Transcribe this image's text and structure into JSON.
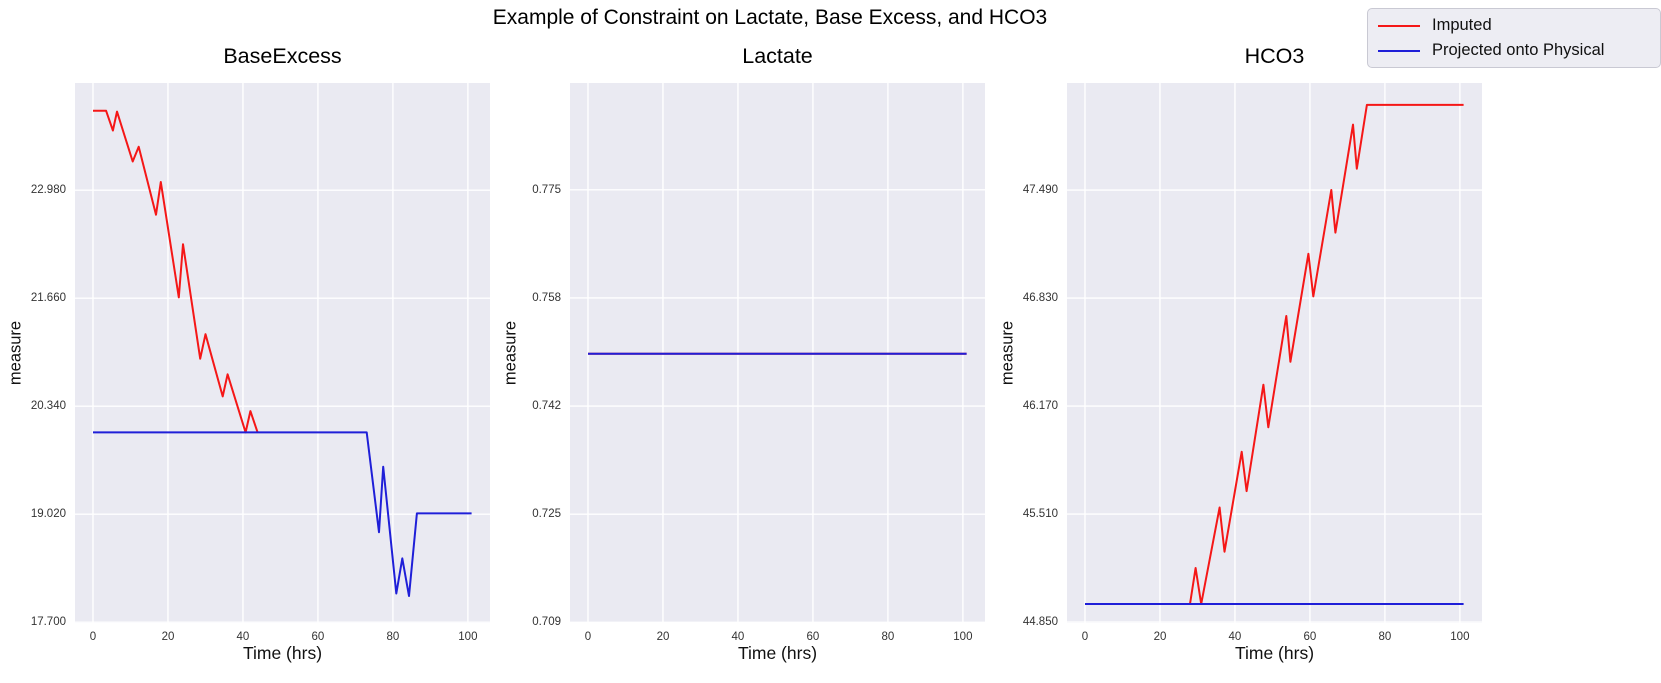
{
  "figure": {
    "title": "Example of Constraint on Lactate, Base Excess, and HCO3"
  },
  "legend": {
    "entries": [
      {
        "label": "Imputed",
        "color": "#f51717"
      },
      {
        "label": "Projected onto Physical",
        "color": "#1f1fd8"
      }
    ]
  },
  "colors": {
    "figure_bg": "#ffffff",
    "plot_bg": "#eaeaf2",
    "grid": "#ffffff",
    "imputed_red": "#f51717",
    "projected_blue": "#1f1fd8"
  },
  "chart_data": [
    {
      "type": "line",
      "title": "BaseExcess",
      "xlabel": "Time (hrs)",
      "ylabel": "measure",
      "grid": true,
      "x_tick_labels": [
        "0",
        "20",
        "40",
        "60",
        "80",
        "100"
      ],
      "x_tick_values": [
        0,
        20,
        40,
        60,
        80,
        100
      ],
      "y_tick_labels": [
        "17.700",
        "19.020",
        "20.340",
        "21.660",
        "22.980"
      ],
      "y_tick_values": [
        17.7,
        19.02,
        20.34,
        21.66,
        22.98
      ],
      "xlim": [
        -4.8,
        105.9
      ],
      "ylim": [
        17.69,
        24.29
      ],
      "series": [
        {
          "name": "Imputed",
          "color": "#f51717",
          "points": [
            [
              0,
              23.95
            ],
            [
              3.5,
              23.95
            ],
            [
              5.3,
              23.71
            ],
            [
              6.4,
              23.94
            ],
            [
              10.6,
              23.33
            ],
            [
              12.2,
              23.51
            ],
            [
              16.8,
              22.68
            ],
            [
              18.1,
              23.08
            ],
            [
              22.9,
              21.67
            ],
            [
              24.0,
              22.32
            ],
            [
              28.6,
              20.92
            ],
            [
              30.0,
              21.22
            ],
            [
              34.6,
              20.46
            ],
            [
              35.9,
              20.73
            ],
            [
              40.7,
              20.02
            ],
            [
              42.0,
              20.28
            ],
            [
              43.9,
              20.02
            ]
          ]
        },
        {
          "name": "Projected onto Physical",
          "color": "#1f1fd8",
          "points": [
            [
              0,
              20.02
            ],
            [
              73,
              20.02
            ],
            [
              76.3,
              18.8
            ],
            [
              77.4,
              19.6
            ],
            [
              80.9,
              18.05
            ],
            [
              82.5,
              18.48
            ],
            [
              84.3,
              18.02
            ],
            [
              86.4,
              19.03
            ],
            [
              101,
              19.03
            ]
          ]
        }
      ]
    },
    {
      "type": "line",
      "title": "Lactate",
      "xlabel": "Time (hrs)",
      "ylabel": "measure",
      "grid": true,
      "x_tick_labels": [
        "0",
        "20",
        "40",
        "60",
        "80",
        "100"
      ],
      "x_tick_values": [
        0,
        20,
        40,
        60,
        80,
        100
      ],
      "y_tick_labels": [
        "0.709",
        "0.725",
        "0.742",
        "0.758",
        "0.775"
      ],
      "y_tick_values": [
        0.709,
        0.7255,
        0.742,
        0.7585,
        0.775
      ],
      "xlim": [
        -4.8,
        105.9
      ],
      "ylim": [
        0.7089,
        0.7913
      ],
      "series": [
        {
          "name": "Imputed",
          "color": "#f51717",
          "points": [
            [
              0,
              0.75
            ],
            [
              101,
              0.75
            ]
          ]
        },
        {
          "name": "Projected onto Physical",
          "color": "#1f1fd8",
          "points": [
            [
              0,
              0.75
            ],
            [
              101,
              0.75
            ]
          ]
        }
      ]
    },
    {
      "type": "line",
      "title": "HCO3",
      "xlabel": "Time (hrs)",
      "ylabel": "measure",
      "grid": true,
      "x_tick_labels": [
        "0",
        "20",
        "40",
        "60",
        "80",
        "100"
      ],
      "x_tick_values": [
        0,
        20,
        40,
        60,
        80,
        100
      ],
      "y_tick_labels": [
        "44.850",
        "45.510",
        "46.170",
        "46.830",
        "47.490"
      ],
      "y_tick_values": [
        44.85,
        45.51,
        46.17,
        46.83,
        47.49
      ],
      "xlim": [
        -4.8,
        105.9
      ],
      "ylim": [
        44.844,
        48.144
      ],
      "series": [
        {
          "name": "Imputed",
          "color": "#f51717",
          "points": [
            [
              0,
              44.96
            ],
            [
              28,
              44.96
            ],
            [
              29.5,
              45.18
            ],
            [
              31,
              44.96
            ],
            [
              35.9,
              45.55
            ],
            [
              37.2,
              45.28
            ],
            [
              41.8,
              45.89
            ],
            [
              43.1,
              45.65
            ],
            [
              47.6,
              46.3
            ],
            [
              48.9,
              46.04
            ],
            [
              53.7,
              46.72
            ],
            [
              54.8,
              46.44
            ],
            [
              59.6,
              47.1
            ],
            [
              60.9,
              46.84
            ],
            [
              65.7,
              47.49
            ],
            [
              66.8,
              47.23
            ],
            [
              71.5,
              47.89
            ],
            [
              72.5,
              47.62
            ],
            [
              75.2,
              48.01
            ],
            [
              101,
              48.01
            ]
          ]
        },
        {
          "name": "Projected onto Physical",
          "color": "#1f1fd8",
          "points": [
            [
              0,
              44.96
            ],
            [
              101,
              44.96
            ]
          ]
        }
      ]
    }
  ]
}
